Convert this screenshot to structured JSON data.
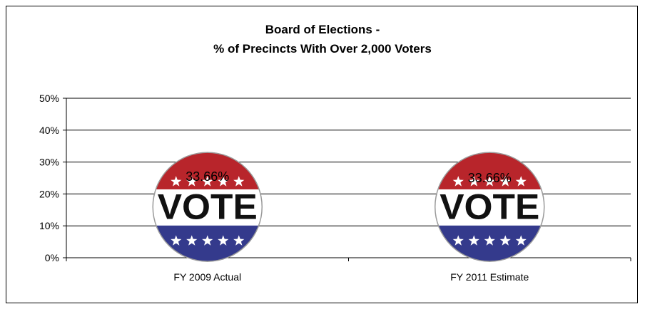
{
  "chart_data": {
    "type": "bar",
    "title": [
      "Board of Elections  -",
      "% of Precincts With Over 2,000 Voters"
    ],
    "categories": [
      "FY 2009 Actual",
      "FY 2011 Estimate"
    ],
    "values": [
      33.66,
      33.66
    ],
    "data_labels": [
      "33.66%",
      "33.66%"
    ],
    "yticks": [
      "0%",
      "10%",
      "20%",
      "30%",
      "40%",
      "50%"
    ],
    "ylim": [
      0,
      50
    ],
    "grid": true,
    "legend": "none",
    "bar_marker": "VOTE button",
    "colors": {
      "button_red": "#b8252b",
      "button_blue": "#343a8c",
      "button_white": "#ffffff",
      "gridline": "#000000"
    }
  }
}
